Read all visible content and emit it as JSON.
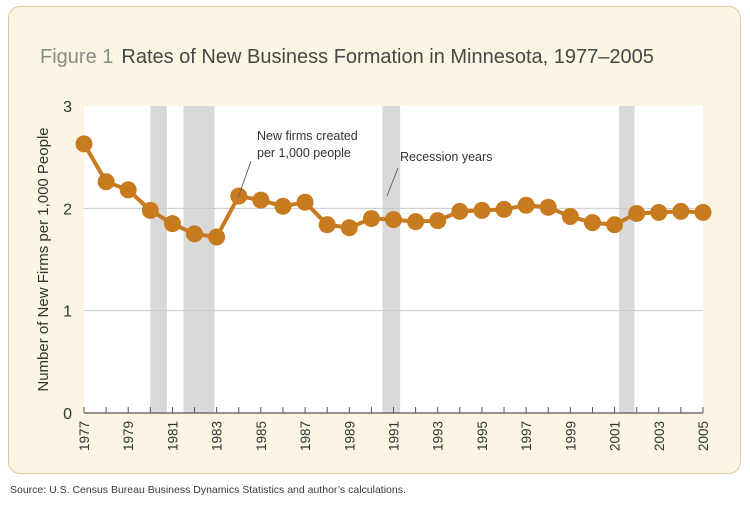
{
  "title": {
    "figure_label": "Figure 1",
    "text": "Rates of New Business Formation in Minnesota, 1977–2005"
  },
  "source": "Source: U.S. Census Bureau Business Dynamics Statistics and author’s calculations.",
  "colors": {
    "panel_background": "#fbf6e4",
    "series": "#c87a1e",
    "recession_band": "#d9d9d9",
    "gridline": "#c9c9c9"
  },
  "chart_data": {
    "type": "line",
    "ylabel": "Number of New Firms per 1,000 People",
    "xlabel": "",
    "ylim": [
      0,
      3
    ],
    "xlim": [
      1977,
      2005
    ],
    "yticks": [
      0,
      1,
      2,
      3
    ],
    "xtick_labels": [
      "1977",
      "1979",
      "1981",
      "1983",
      "1985",
      "1987",
      "1989",
      "1991",
      "1993",
      "1995",
      "1997",
      "1999",
      "2001",
      "2003",
      "2005"
    ],
    "grid": "horizontal at 1 and 2",
    "recession_periods": [
      [
        1980,
        1980.75
      ],
      [
        1981.5,
        1982.9
      ],
      [
        1990.5,
        1991.3
      ],
      [
        2001.2,
        2001.9
      ]
    ],
    "series": [
      {
        "x": [
          1977,
          1978,
          1979,
          1980,
          1981,
          1982,
          1983,
          1984,
          1985,
          1986,
          1987,
          1988,
          1989,
          1990,
          1991,
          1992,
          1993,
          1994,
          1995,
          1996,
          1997,
          1998,
          1999,
          2000,
          2001,
          2002,
          2003,
          2004,
          2005
        ],
        "values": [
          2.63,
          2.26,
          2.18,
          1.98,
          1.85,
          1.75,
          1.72,
          2.12,
          2.08,
          2.02,
          2.06,
          1.84,
          1.81,
          1.9,
          1.89,
          1.87,
          1.88,
          1.97,
          1.98,
          1.99,
          2.03,
          2.01,
          1.92,
          1.86,
          1.84,
          1.95,
          1.96,
          1.97,
          1.96
        ]
      }
    ],
    "annotations": {
      "series_note": [
        "New firms created",
        "per 1,000 people"
      ],
      "recession_note": "Recession years"
    }
  }
}
